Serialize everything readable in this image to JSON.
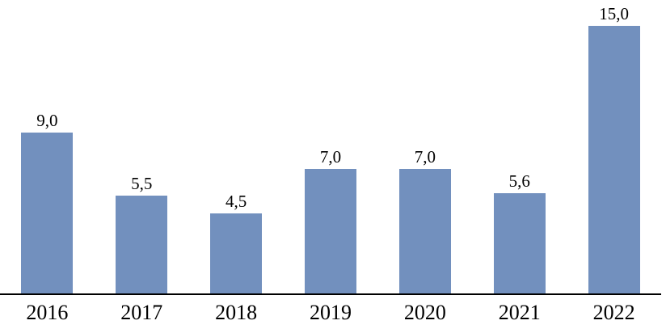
{
  "chart_data": {
    "type": "bar",
    "title": "",
    "xlabel": "",
    "ylabel": "",
    "categories": [
      "2016",
      "2017",
      "2018",
      "2019",
      "2020",
      "2021",
      "2022"
    ],
    "values": [
      9.0,
      5.5,
      4.5,
      7.0,
      7.0,
      5.6,
      15.0
    ],
    "value_labels": [
      "9,0",
      "5,5",
      "4,5",
      "7,0",
      "7,0",
      "5,6",
      "15,0"
    ],
    "decimal_separator": ",",
    "ylim": [
      0,
      16.45
    ],
    "grid": false,
    "legend": "none",
    "y_axis_visible": false,
    "x_axis_line": true,
    "colors": {
      "bar_fill": "#7290BE",
      "axis_line": "#000000",
      "label_text": "#000000",
      "background": "#FFFFFF"
    }
  }
}
